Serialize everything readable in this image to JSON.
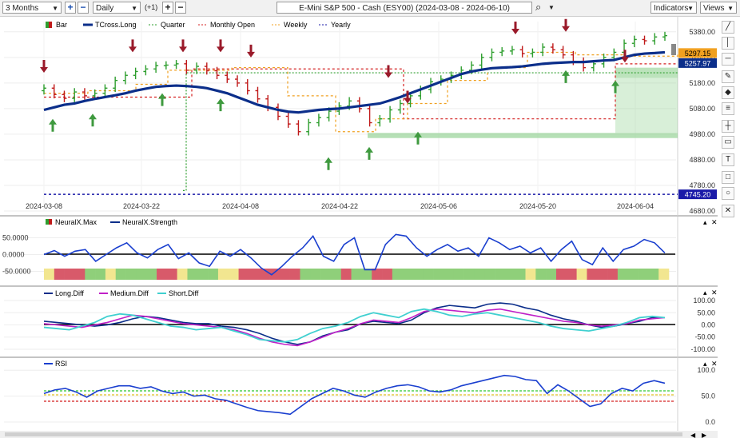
{
  "toolbar": {
    "range": "3 Months",
    "interval": "Daily",
    "plus_one": "(+1)",
    "title": "E-Mini S&P 500 - Cash (ESY00) (2024-03-08 - 2024-06-10)",
    "indicators": "Indicators",
    "views": "Views"
  },
  "legend_main": {
    "bar": "Bar",
    "tcross": "TCross.Long",
    "quarter": "Quarter",
    "monthly": "Monthly Open",
    "weekly": "Weekly",
    "yearly": "Yearly"
  },
  "legend_neural": {
    "max": "NeuralX.Max",
    "strength": "NeuralX.Strength"
  },
  "legend_diff": {
    "long": "Long.Diff",
    "medium": "Medium.Diff",
    "short": "Short.Diff"
  },
  "legend_rsi": {
    "rsi": "RSI"
  },
  "colors": {
    "up": "#2e9e2e",
    "down": "#c01a1a",
    "tcross": "#0b2e8a",
    "quarter": "#2e9e2e",
    "monthly": "#d42020",
    "weekly": "#f0a020",
    "yearly": "#1a1aa8",
    "zone": "#8fd08f"
  },
  "chart_data": [
    {
      "type": "line",
      "title": "E-Mini S&P 500 - Cash (ESY00)",
      "ylim": [
        4680,
        5420
      ],
      "x_ticks": [
        "2024-03-08",
        "2024-03-22",
        "2024-04-08",
        "2024-04-22",
        "2024-05-06",
        "2024-05-20",
        "2024-06-04"
      ],
      "y_ticks": [
        4680.0,
        4780.0,
        4880.0,
        4980.0,
        5080.0,
        5180.0,
        5280.0,
        5380.0
      ],
      "price_labels": {
        "weekly": "5297.15",
        "tcross": "5257.97",
        "yearly": "4745.20"
      },
      "levels": {
        "yearly": 4745.2,
        "weekly_last": 5297.15,
        "tcross_last": 5257.97
      },
      "close": [
        5160,
        5135,
        5120,
        5145,
        5130,
        5140,
        5160,
        5190,
        5210,
        5225,
        5235,
        5248,
        5250,
        5255,
        5230,
        5245,
        5228,
        5210,
        5195,
        5180,
        5150,
        5118,
        5085,
        5050,
        5020,
        4990,
        5025,
        5045,
        5070,
        5090,
        5110,
        5080,
        5025,
        5040,
        5075,
        5100,
        5130,
        5155,
        5185,
        5195,
        5210,
        5230,
        5250,
        5280,
        5300,
        5305,
        5310,
        5295,
        5300,
        5320,
        5310,
        5290,
        5265,
        5240,
        5255,
        5280,
        5300,
        5335,
        5350,
        5345,
        5360,
        5365
      ],
      "tcross": [
        5075,
        5085,
        5095,
        5100,
        5110,
        5118,
        5125,
        5132,
        5140,
        5150,
        5158,
        5165,
        5168,
        5170,
        5168,
        5165,
        5160,
        5150,
        5140,
        5125,
        5110,
        5095,
        5085,
        5075,
        5068,
        5065,
        5070,
        5075,
        5078,
        5080,
        5085,
        5090,
        5095,
        5100,
        5112,
        5125,
        5140,
        5155,
        5170,
        5185,
        5200,
        5215,
        5225,
        5232,
        5238,
        5240,
        5242,
        5245,
        5250,
        5255,
        5258,
        5260,
        5262,
        5262,
        5265,
        5268,
        5270,
        5280,
        5290,
        5295,
        5297,
        5300
      ]
    },
    {
      "type": "line",
      "title": "NeuralX",
      "series": [
        {
          "name": "NeuralX.Strength",
          "values": [
            0,
            12,
            -5,
            10,
            15,
            -20,
            0,
            20,
            35,
            5,
            -10,
            15,
            30,
            -12,
            5,
            -25,
            -35,
            10,
            -5,
            15,
            -10,
            -40,
            -60,
            -35,
            -5,
            20,
            55,
            -5,
            -20,
            30,
            50,
            -45,
            -45,
            30,
            60,
            55,
            20,
            -5,
            15,
            30,
            10,
            20,
            -5,
            50,
            35,
            15,
            25,
            5,
            20,
            -20,
            15,
            40,
            -15,
            -30,
            20,
            -20,
            15,
            25,
            45,
            35,
            5
          ]
        }
      ],
      "y_ticks": [
        50.0,
        0.0,
        -50.0
      ],
      "ylim": [
        -75,
        75
      ]
    },
    {
      "type": "line",
      "title": "Diff",
      "series": [
        {
          "name": "Long.Diff",
          "values": [
            15,
            10,
            5,
            0,
            -5,
            0,
            10,
            25,
            35,
            30,
            20,
            10,
            5,
            5,
            -5,
            -10,
            -20,
            -35,
            -55,
            -70,
            -80,
            -70,
            -45,
            -30,
            -20,
            5,
            15,
            10,
            5,
            20,
            50,
            70,
            80,
            75,
            70,
            85,
            90,
            85,
            70,
            60,
            40,
            25,
            15,
            0,
            -10,
            -5,
            5,
            15,
            30,
            30
          ]
        },
        {
          "name": "Medium.Diff",
          "values": [
            5,
            0,
            -5,
            -10,
            0,
            10,
            25,
            40,
            35,
            25,
            15,
            5,
            0,
            -5,
            -10,
            -20,
            -35,
            -55,
            -70,
            -80,
            -85,
            -70,
            -50,
            -30,
            -15,
            5,
            20,
            15,
            10,
            30,
            55,
            65,
            60,
            55,
            50,
            60,
            65,
            55,
            45,
            35,
            25,
            15,
            10,
            0,
            -5,
            0,
            5,
            20,
            25,
            30
          ]
        },
        {
          "name": "Short.Diff",
          "values": [
            -10,
            -15,
            -20,
            -5,
            10,
            35,
            45,
            40,
            25,
            10,
            -5,
            -10,
            -20,
            -15,
            -10,
            -25,
            -40,
            -60,
            -65,
            -70,
            -60,
            -35,
            -15,
            -5,
            10,
            35,
            50,
            40,
            30,
            55,
            65,
            55,
            40,
            35,
            45,
            50,
            40,
            30,
            20,
            10,
            -5,
            -15,
            -20,
            -25,
            -15,
            -5,
            10,
            30,
            35,
            30
          ]
        }
      ],
      "y_ticks": [
        100.0,
        50.0,
        0.0,
        -50.0,
        -100.0
      ],
      "ylim": [
        -110,
        110
      ]
    },
    {
      "type": "line",
      "title": "RSI",
      "series": [
        {
          "name": "RSI",
          "values": [
            55,
            62,
            65,
            58,
            48,
            60,
            65,
            70,
            70,
            65,
            68,
            60,
            55,
            58,
            50,
            52,
            45,
            42,
            35,
            28,
            22,
            20,
            18,
            15,
            30,
            45,
            55,
            65,
            60,
            52,
            48,
            58,
            65,
            70,
            72,
            68,
            60,
            58,
            62,
            70,
            75,
            80,
            85,
            90,
            88,
            82,
            80,
            55,
            72,
            60,
            45,
            30,
            35,
            55,
            65,
            60,
            75,
            80,
            75
          ]
        }
      ],
      "y_ticks": [
        100.0,
        50.0,
        0.0
      ],
      "ylim": [
        0,
        105
      ]
    }
  ]
}
